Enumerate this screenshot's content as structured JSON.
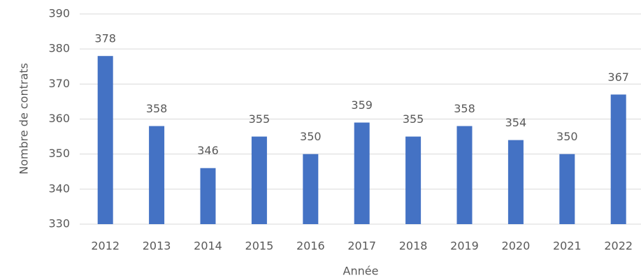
{
  "chart_data": {
    "type": "bar",
    "x_label": "Année",
    "y_label": "Nombre de contrats",
    "categories": [
      "2012",
      "2013",
      "2014",
      "2015",
      "2016",
      "2017",
      "2018",
      "2019",
      "2020",
      "2021",
      "2022"
    ],
    "values": [
      378,
      358,
      346,
      355,
      350,
      359,
      355,
      358,
      354,
      350,
      367
    ],
    "color": "#4472c4",
    "ylim": [
      330,
      390
    ],
    "yticks": [
      330,
      340,
      350,
      360,
      370,
      380,
      390
    ],
    "grid": true
  }
}
